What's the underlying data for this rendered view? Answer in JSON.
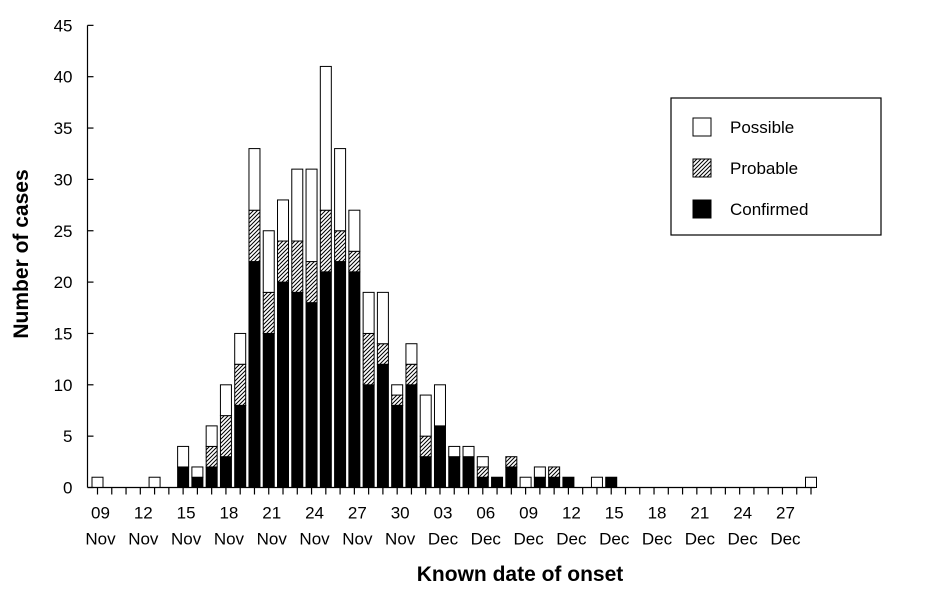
{
  "chart_data": {
    "type": "bar",
    "stacked": true,
    "xlabel": "Known date of onset",
    "ylabel": "Number of cases",
    "ylim": [
      0,
      45
    ],
    "yticks": [
      0,
      5,
      10,
      15,
      20,
      25,
      30,
      35,
      40,
      45
    ],
    "x_start": "09 Nov",
    "x_end": "29 Dec",
    "x_tick_labels": [
      {
        "day": "09",
        "month": "Nov"
      },
      {
        "day": "12",
        "month": "Nov"
      },
      {
        "day": "15",
        "month": "Nov"
      },
      {
        "day": "18",
        "month": "Nov"
      },
      {
        "day": "21",
        "month": "Nov"
      },
      {
        "day": "24",
        "month": "Nov"
      },
      {
        "day": "27",
        "month": "Nov"
      },
      {
        "day": "30",
        "month": "Nov"
      },
      {
        "day": "03",
        "month": "Dec"
      },
      {
        "day": "06",
        "month": "Dec"
      },
      {
        "day": "09",
        "month": "Dec"
      },
      {
        "day": "12",
        "month": "Dec"
      },
      {
        "day": "15",
        "month": "Dec"
      },
      {
        "day": "18",
        "month": "Dec"
      },
      {
        "day": "21",
        "month": "Dec"
      },
      {
        "day": "24",
        "month": "Dec"
      },
      {
        "day": "27",
        "month": "Dec"
      }
    ],
    "series": [
      {
        "name": "Confirmed",
        "pattern": "solid-black",
        "values": {
          "15 Nov": 2,
          "16 Nov": 1,
          "17 Nov": 2,
          "18 Nov": 3,
          "19 Nov": 8,
          "20 Nov": 22,
          "21 Nov": 15,
          "22 Nov": 20,
          "23 Nov": 19,
          "24 Nov": 18,
          "25 Nov": 21,
          "26 Nov": 22,
          "27 Nov": 21,
          "28 Nov": 10,
          "29 Nov": 12,
          "30 Nov": 8,
          "01 Dec": 10,
          "02 Dec": 3,
          "03 Dec": 6,
          "04 Dec": 3,
          "05 Dec": 3,
          "06 Dec": 1,
          "07 Dec": 1,
          "08 Dec": 2,
          "10 Dec": 1,
          "11 Dec": 1,
          "12 Dec": 1,
          "15 Dec": 1
        }
      },
      {
        "name": "Probable",
        "pattern": "hatched",
        "values": {
          "17 Nov": 2,
          "18 Nov": 4,
          "19 Nov": 4,
          "20 Nov": 5,
          "21 Nov": 4,
          "22 Nov": 4,
          "23 Nov": 5,
          "24 Nov": 4,
          "25 Nov": 6,
          "26 Nov": 3,
          "27 Nov": 2,
          "28 Nov": 5,
          "29 Nov": 2,
          "30 Nov": 1,
          "01 Dec": 2,
          "02 Dec": 2,
          "06 Dec": 1,
          "08 Dec": 1,
          "11 Dec": 1
        }
      },
      {
        "name": "Possible",
        "pattern": "white",
        "values": {
          "09 Nov": 1,
          "13 Nov": 1,
          "15 Nov": 2,
          "16 Nov": 1,
          "17 Nov": 2,
          "18 Nov": 3,
          "19 Nov": 3,
          "20 Nov": 6,
          "21 Nov": 6,
          "22 Nov": 4,
          "23 Nov": 7,
          "24 Nov": 9,
          "25 Nov": 14,
          "26 Nov": 8,
          "27 Nov": 4,
          "28 Nov": 4,
          "29 Nov": 5,
          "30 Nov": 1,
          "01 Dec": 2,
          "02 Dec": 4,
          "03 Dec": 4,
          "04 Dec": 1,
          "05 Dec": 1,
          "06 Dec": 1,
          "09 Dec": 1,
          "10 Dec": 1,
          "14 Dec": 1,
          "29 Dec": 1
        }
      }
    ],
    "legend": {
      "placement": "top-right",
      "items": [
        "Possible",
        "Probable",
        "Confirmed"
      ]
    },
    "grid": false,
    "colors": {
      "confirmed": "#000000",
      "probable_hatch": "#000000",
      "possible": "#ffffff",
      "stroke": "#000000"
    }
  }
}
